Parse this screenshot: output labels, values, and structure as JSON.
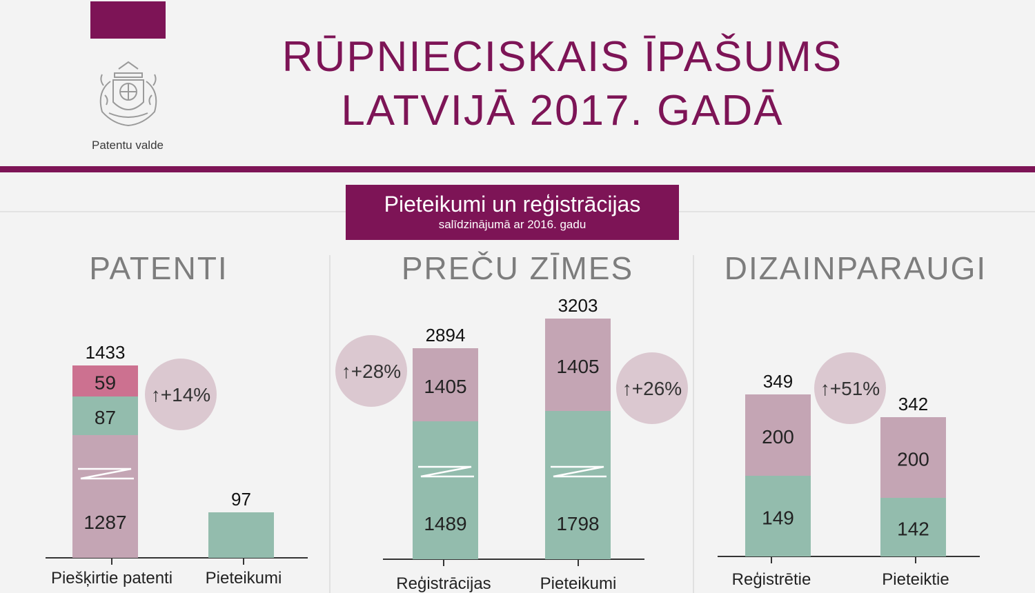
{
  "header": {
    "org_name": "Patentu valde",
    "title_line1": "RŪPNIECISKAIS ĪPAŠUMS",
    "title_line2": "LATVIJĀ 2017. GADĀ"
  },
  "banner": {
    "title": "Pieteikumi un reģistrācijas",
    "subtitle": "salīdzinājumā ar 2016. gadu"
  },
  "colors": {
    "accent": "#7d1456",
    "mauve": "#c4a5b4",
    "green": "#93bcad",
    "pink": "#cc7190",
    "bubble": "#dbc8d0",
    "section_title": "#7d7d7d"
  },
  "sections": {
    "patents": "PATENTI",
    "trademarks": "PREČU ZĪMES",
    "designs": "DIZAINPARAUGI"
  },
  "chart_data": [
    {
      "type": "bar",
      "title": "PATENTI",
      "categories": [
        "Piešķirtie patenti",
        "Pieteikumi"
      ],
      "totals": [
        "1433",
        "97"
      ],
      "stacks": [
        [
          {
            "label": "1287",
            "value": 1287,
            "color": "#c4a5b4",
            "axis_break": true
          },
          {
            "label": "87",
            "value": 87,
            "color": "#93bcad"
          },
          {
            "label": "59",
            "value": 59,
            "color": "#cc7190"
          }
        ],
        [
          {
            "label": "",
            "value": 97,
            "color": "#93bcad"
          }
        ]
      ],
      "change": "↑+14%"
    },
    {
      "type": "bar",
      "title": "PREČU ZĪMES",
      "categories": [
        "Reģistrācijas",
        "Pieteikumi"
      ],
      "totals": [
        "2894",
        "3203"
      ],
      "stacks": [
        [
          {
            "label": "1489",
            "value": 1489,
            "color": "#93bcad",
            "axis_break": true
          },
          {
            "label": "1405",
            "value": 1405,
            "color": "#c4a5b4"
          }
        ],
        [
          {
            "label": "1798",
            "value": 1798,
            "color": "#93bcad",
            "axis_break": true
          },
          {
            "label": "1405",
            "value": 1405,
            "color": "#c4a5b4"
          }
        ]
      ],
      "changes": [
        "↑+28%",
        "↑+26%"
      ]
    },
    {
      "type": "bar",
      "title": "DIZAINPARAUGI",
      "categories": [
        "Reģistrētie",
        "Pieteiktie"
      ],
      "totals": [
        "349",
        "342"
      ],
      "stacks": [
        [
          {
            "label": "149",
            "value": 149,
            "color": "#93bcad"
          },
          {
            "label": "200",
            "value": 200,
            "color": "#c4a5b4"
          }
        ],
        [
          {
            "label": "142",
            "value": 142,
            "color": "#93bcad"
          },
          {
            "label": "200",
            "value": 200,
            "color": "#c4a5b4"
          }
        ]
      ],
      "change": "↑+51%"
    }
  ]
}
